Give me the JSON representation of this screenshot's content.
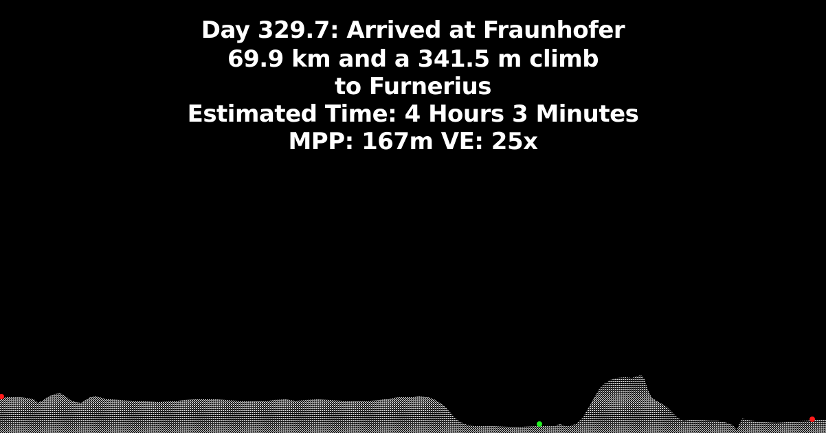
{
  "header": {
    "day_line": "Day 329.7: Arrived at Fraunhofer",
    "distance_line": "69.9 km and a 341.5 m climb",
    "destination_line": "to Furnerius",
    "time_line": "Estimated Time: 4 Hours 3 Minutes",
    "scale_line": "MPP: 167m VE: 25x"
  },
  "colors": {
    "background": "#000000",
    "text": "#ffffff",
    "terrain": "#d0d0d0",
    "marker_start": "#ff1a1a",
    "marker_end": "#ff1a1a",
    "marker_current": "#22ee22"
  }
}
